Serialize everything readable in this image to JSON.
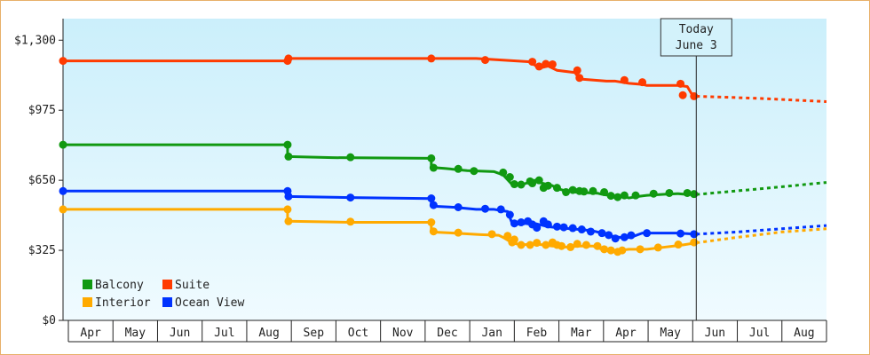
{
  "chart_data": {
    "type": "line",
    "title": "",
    "xlabel": "",
    "ylabel": "",
    "ylim": [
      0,
      1400
    ],
    "y_ticks": [
      {
        "value": 0,
        "label": "$0"
      },
      {
        "value": 325,
        "label": "$325"
      },
      {
        "value": 650,
        "label": "$650"
      },
      {
        "value": 975,
        "label": "$975"
      },
      {
        "value": 1300,
        "label": "$1,300"
      }
    ],
    "x_months": [
      "Apr",
      "May",
      "Jun",
      "Jul",
      "Aug",
      "Sep",
      "Oct",
      "Nov",
      "Dec",
      "Jan",
      "Feb",
      "Mar",
      "Apr",
      "May",
      "Jun",
      "Jul",
      "Aug"
    ],
    "xlim": [
      0,
      17
    ],
    "today": {
      "line1": "Today",
      "line2": "June 3",
      "x": 14.1
    },
    "legend": {
      "position": "bottom-left"
    },
    "grid": false,
    "background_gradient": [
      "#cbeffb",
      "#f0fbff"
    ],
    "series": [
      {
        "name": "Suite",
        "color": "#ff3b00",
        "points": [
          [
            0.0,
            1204
          ],
          [
            5.0,
            1204
          ],
          [
            5.0,
            1215
          ],
          [
            9.2,
            1215
          ],
          [
            10.4,
            1200
          ],
          [
            10.6,
            1170
          ],
          [
            10.8,
            1180
          ],
          [
            11.0,
            1160
          ],
          [
            11.4,
            1150
          ],
          [
            11.5,
            1120
          ],
          [
            12.1,
            1110
          ],
          [
            12.3,
            1110
          ],
          [
            12.6,
            1100
          ],
          [
            12.9,
            1095
          ],
          [
            13.0,
            1090
          ],
          [
            13.7,
            1090
          ],
          [
            13.9,
            1085
          ],
          [
            14.0,
            1050
          ],
          [
            14.1,
            1040
          ]
        ],
        "markers": [
          [
            0.0,
            1204
          ],
          [
            5.0,
            1204
          ],
          [
            5.02,
            1215
          ],
          [
            8.2,
            1215
          ],
          [
            9.4,
            1208
          ],
          [
            10.45,
            1200
          ],
          [
            10.6,
            1178
          ],
          [
            10.75,
            1190
          ],
          [
            10.9,
            1188
          ],
          [
            11.45,
            1160
          ],
          [
            11.5,
            1125
          ],
          [
            12.5,
            1115
          ],
          [
            12.9,
            1105
          ],
          [
            13.75,
            1098
          ],
          [
            13.8,
            1045
          ],
          [
            14.05,
            1040
          ]
        ],
        "forecast": [
          [
            14.1,
            1040
          ],
          [
            15.5,
            1030
          ],
          [
            17.0,
            1015
          ]
        ]
      },
      {
        "name": "Balcony",
        "color": "#119911",
        "points": [
          [
            0.0,
            815
          ],
          [
            5.0,
            815
          ],
          [
            5.0,
            760
          ],
          [
            6.0,
            755
          ],
          [
            8.2,
            752
          ],
          [
            8.2,
            710
          ],
          [
            8.5,
            705
          ],
          [
            9.0,
            695
          ],
          [
            9.6,
            690
          ],
          [
            9.8,
            675
          ],
          [
            10.0,
            630
          ],
          [
            10.2,
            628
          ],
          [
            10.5,
            650
          ],
          [
            10.6,
            640
          ],
          [
            10.9,
            625
          ],
          [
            11.0,
            612
          ],
          [
            11.2,
            600
          ],
          [
            11.4,
            595
          ],
          [
            11.7,
            592
          ],
          [
            11.9,
            590
          ],
          [
            12.0,
            585
          ],
          [
            12.3,
            575
          ],
          [
            12.5,
            575
          ],
          [
            12.6,
            568
          ],
          [
            12.8,
            575
          ],
          [
            13.0,
            580
          ],
          [
            13.4,
            585
          ],
          [
            13.7,
            588
          ],
          [
            13.9,
            584
          ],
          [
            14.1,
            584
          ]
        ],
        "markers": [
          [
            0.0,
            815
          ],
          [
            5.0,
            815
          ],
          [
            5.02,
            760
          ],
          [
            6.4,
            757
          ],
          [
            8.2,
            752
          ],
          [
            8.25,
            708
          ],
          [
            8.8,
            703
          ],
          [
            9.15,
            693
          ],
          [
            9.8,
            686
          ],
          [
            9.95,
            665
          ],
          [
            10.05,
            632
          ],
          [
            10.2,
            630
          ],
          [
            10.4,
            645
          ],
          [
            10.45,
            636
          ],
          [
            10.6,
            650
          ],
          [
            10.7,
            615
          ],
          [
            10.8,
            625
          ],
          [
            11.0,
            615
          ],
          [
            11.2,
            595
          ],
          [
            11.35,
            605
          ],
          [
            11.5,
            600
          ],
          [
            11.6,
            598
          ],
          [
            11.8,
            600
          ],
          [
            12.05,
            595
          ],
          [
            12.2,
            578
          ],
          [
            12.35,
            572
          ],
          [
            12.5,
            580
          ],
          [
            12.75,
            580
          ],
          [
            13.15,
            588
          ],
          [
            13.5,
            591
          ],
          [
            13.9,
            591
          ],
          [
            14.05,
            586
          ]
        ],
        "forecast": [
          [
            14.1,
            584
          ],
          [
            15.5,
            610
          ],
          [
            17.0,
            640
          ]
        ]
      },
      {
        "name": "Ocean View",
        "color": "#0033ff",
        "points": [
          [
            0.0,
            600
          ],
          [
            5.0,
            600
          ],
          [
            5.0,
            575
          ],
          [
            6.4,
            570
          ],
          [
            8.2,
            565
          ],
          [
            8.2,
            530
          ],
          [
            8.7,
            525
          ],
          [
            9.2,
            515
          ],
          [
            9.6,
            515
          ],
          [
            9.9,
            505
          ],
          [
            10.0,
            450
          ],
          [
            10.2,
            445
          ],
          [
            10.4,
            455
          ],
          [
            10.6,
            445
          ],
          [
            10.8,
            435
          ],
          [
            11.0,
            430
          ],
          [
            11.3,
            425
          ],
          [
            11.6,
            420
          ],
          [
            11.8,
            415
          ],
          [
            12.0,
            405
          ],
          [
            12.2,
            390
          ],
          [
            12.3,
            390
          ],
          [
            12.5,
            380
          ],
          [
            12.7,
            390
          ],
          [
            12.9,
            405
          ],
          [
            13.3,
            405
          ],
          [
            13.7,
            405
          ],
          [
            14.1,
            400
          ]
        ],
        "markers": [
          [
            0.0,
            600
          ],
          [
            5.0,
            600
          ],
          [
            5.02,
            575
          ],
          [
            6.4,
            570
          ],
          [
            8.2,
            566
          ],
          [
            8.25,
            535
          ],
          [
            8.8,
            525
          ],
          [
            9.4,
            518
          ],
          [
            9.75,
            515
          ],
          [
            9.95,
            490
          ],
          [
            10.05,
            450
          ],
          [
            10.2,
            455
          ],
          [
            10.35,
            460
          ],
          [
            10.45,
            445
          ],
          [
            10.55,
            430
          ],
          [
            10.7,
            460
          ],
          [
            10.8,
            445
          ],
          [
            11.0,
            435
          ],
          [
            11.15,
            432
          ],
          [
            11.35,
            428
          ],
          [
            11.55,
            422
          ],
          [
            11.75,
            412
          ],
          [
            12.0,
            405
          ],
          [
            12.15,
            396
          ],
          [
            12.3,
            380
          ],
          [
            12.5,
            386
          ],
          [
            12.65,
            395
          ],
          [
            13.0,
            405
          ],
          [
            13.75,
            403
          ],
          [
            14.05,
            400
          ]
        ],
        "forecast": [
          [
            14.1,
            400
          ],
          [
            15.0,
            410
          ],
          [
            16.0,
            425
          ],
          [
            17.0,
            440
          ]
        ]
      },
      {
        "name": "Interior",
        "color": "#ffaa00",
        "points": [
          [
            0.0,
            515
          ],
          [
            5.0,
            515
          ],
          [
            5.0,
            460
          ],
          [
            6.4,
            455
          ],
          [
            8.2,
            455
          ],
          [
            8.2,
            410
          ],
          [
            8.7,
            405
          ],
          [
            9.3,
            398
          ],
          [
            9.7,
            395
          ],
          [
            9.8,
            385
          ],
          [
            10.0,
            360
          ],
          [
            10.2,
            350
          ],
          [
            10.5,
            355
          ],
          [
            10.7,
            350
          ],
          [
            10.9,
            345
          ],
          [
            11.2,
            340
          ],
          [
            11.5,
            345
          ],
          [
            11.8,
            345
          ],
          [
            12.0,
            330
          ],
          [
            12.2,
            325
          ],
          [
            12.4,
            325
          ],
          [
            12.6,
            330
          ],
          [
            13.0,
            330
          ],
          [
            13.4,
            340
          ],
          [
            13.8,
            350
          ],
          [
            14.1,
            360
          ]
        ],
        "markers": [
          [
            0.0,
            515
          ],
          [
            5.0,
            515
          ],
          [
            5.02,
            460
          ],
          [
            6.4,
            458
          ],
          [
            8.2,
            455
          ],
          [
            8.25,
            413
          ],
          [
            8.8,
            407
          ],
          [
            9.55,
            400
          ],
          [
            9.9,
            392
          ],
          [
            10.0,
            362
          ],
          [
            10.05,
            375
          ],
          [
            10.2,
            350
          ],
          [
            10.4,
            350
          ],
          [
            10.55,
            360
          ],
          [
            10.75,
            350
          ],
          [
            10.9,
            362
          ],
          [
            11.0,
            350
          ],
          [
            11.1,
            345
          ],
          [
            11.3,
            340
          ],
          [
            11.45,
            355
          ],
          [
            11.65,
            350
          ],
          [
            11.9,
            345
          ],
          [
            12.05,
            330
          ],
          [
            12.2,
            325
          ],
          [
            12.35,
            318
          ],
          [
            12.45,
            325
          ],
          [
            12.85,
            330
          ],
          [
            13.25,
            338
          ],
          [
            13.7,
            352
          ],
          [
            14.05,
            362
          ]
        ],
        "forecast": [
          [
            14.1,
            360
          ],
          [
            15.0,
            385
          ],
          [
            16.0,
            410
          ],
          [
            17.0,
            425
          ]
        ]
      }
    ],
    "legend_order": [
      "Balcony",
      "Suite",
      "Interior",
      "Ocean View"
    ]
  }
}
